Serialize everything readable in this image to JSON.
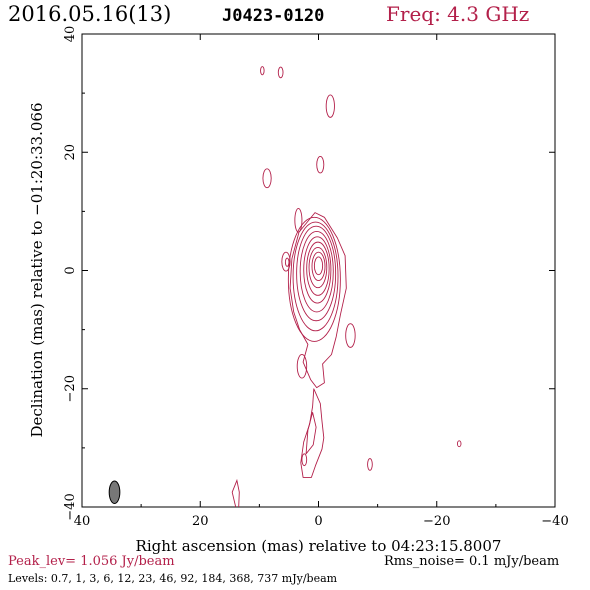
{
  "header": {
    "date": "2016.05.16(13)",
    "source": "J0423-0120",
    "frequency": "Freq: 4.3 GHz"
  },
  "footer": {
    "peak": "Peak_lev=  1.056 Jy/beam",
    "rms": "Rms_noise=  0.1 mJy/beam",
    "levels": "Levels: 0.7,   1,   3,   6,  12,  23,  46,  92, 184, 368, 737 mJy/beam"
  },
  "colors": {
    "contour": "#b3204a",
    "beam": "#777777",
    "axis": "#000000"
  },
  "chart_data": {
    "type": "contour",
    "title": "J0423-0120",
    "xlabel": "Right ascension (mas) relative to 04:23:15.8007",
    "ylabel": "Declination (mas) relative to −01:20:33.066",
    "xlim": [
      40,
      -40
    ],
    "ylim": [
      -40,
      40
    ],
    "xticks": [
      40,
      20,
      0,
      -20,
      -40
    ],
    "yticks": [
      -40,
      -20,
      0,
      20,
      40
    ],
    "xtick_labels": [
      "40",
      "20",
      "0",
      "−20",
      "−40"
    ],
    "ytick_labels": [
      "−40",
      "−20",
      "0",
      "20",
      "40"
    ],
    "levels_mJy": [
      0.7,
      1,
      3,
      6,
      12,
      23,
      46,
      92,
      184,
      368,
      737
    ],
    "peak_Jy_per_beam": 1.056,
    "rms_noise_mJy_per_beam": 0.1,
    "beam": {
      "x": 34.5,
      "y": -37.5,
      "major_mas": 3.8,
      "minor_mas": 1.8,
      "pa_deg": 0
    },
    "core": {
      "x": 0,
      "y": 0
    },
    "core_contours": [
      {
        "cx": 0.7,
        "cy": -1.5,
        "rx": 4.4,
        "ry": 10.5
      },
      {
        "cx": 0.5,
        "cy": -1.0,
        "rx": 3.8,
        "ry": 9.2
      },
      {
        "cx": 0.4,
        "cy": -0.5,
        "rx": 3.3,
        "ry": 8.0
      },
      {
        "cx": 0.3,
        "cy": -0.2,
        "rx": 2.8,
        "ry": 6.8
      },
      {
        "cx": 0.2,
        "cy": 0.1,
        "rx": 2.3,
        "ry": 5.6
      },
      {
        "cx": 0.1,
        "cy": 0.3,
        "rx": 1.9,
        "ry": 4.5
      },
      {
        "cx": 0.1,
        "cy": 0.5,
        "rx": 1.5,
        "ry": 3.4
      },
      {
        "cx": 0.0,
        "cy": 0.7,
        "rx": 1.1,
        "ry": 2.4
      },
      {
        "cx": 0.0,
        "cy": 0.8,
        "rx": 0.7,
        "ry": 1.5
      }
    ],
    "jet_outline": [
      [
        4.5,
        2
      ],
      [
        4.8,
        -3
      ],
      [
        4.2,
        -7
      ],
      [
        3.2,
        -10
      ],
      [
        1.8,
        -12.5
      ],
      [
        2.6,
        -15.5
      ],
      [
        1.3,
        -18.5
      ],
      [
        0.3,
        -19.8
      ],
      [
        -1.0,
        -19.0
      ],
      [
        -0.7,
        -15.8
      ],
      [
        -2.2,
        -14.2
      ],
      [
        -3.0,
        -11.2
      ],
      [
        -3.7,
        -7.5
      ],
      [
        -4.7,
        -3.0
      ],
      [
        -4.5,
        2.5
      ],
      [
        -3.2,
        5.5
      ],
      [
        -1.0,
        9.0
      ],
      [
        0.6,
        9.8
      ],
      [
        3.3,
        6.5
      ]
    ],
    "blobs": [
      {
        "cx": 9.5,
        "cy": 33.8,
        "rx": 0.3,
        "ry": 0.7
      },
      {
        "cx": 6.4,
        "cy": 33.5,
        "rx": 0.4,
        "ry": 0.9
      },
      {
        "cx": -2.0,
        "cy": 27.8,
        "rx": 0.7,
        "ry": 1.9
      },
      {
        "cx": -0.3,
        "cy": 17.9,
        "rx": 0.6,
        "ry": 1.4
      },
      {
        "cx": 8.7,
        "cy": 15.6,
        "rx": 0.7,
        "ry": 1.6
      },
      {
        "cx": 3.4,
        "cy": 8.5,
        "rx": 0.6,
        "ry": 2.0
      },
      {
        "cx": 5.5,
        "cy": 1.5,
        "rx": 0.7,
        "ry": 1.6
      },
      {
        "cx": 5.3,
        "cy": 1.4,
        "rx": 0.3,
        "ry": 0.7
      },
      {
        "cx": -5.4,
        "cy": -11.0,
        "rx": 0.8,
        "ry": 2.0
      },
      {
        "cx": 2.8,
        "cy": -16.2,
        "rx": 0.8,
        "ry": 2.0
      },
      {
        "cx": 2.4,
        "cy": -32.0,
        "rx": 0.4,
        "ry": 1.0
      },
      {
        "cx": -8.7,
        "cy": -32.8,
        "rx": 0.4,
        "ry": 1.0
      },
      {
        "cx": -23.8,
        "cy": -29.3,
        "rx": 0.3,
        "ry": 0.5
      }
    ],
    "tail": [
      [
        0.8,
        -20.0
      ],
      [
        -0.3,
        -22.5
      ],
      [
        -0.6,
        -25.5
      ],
      [
        -0.9,
        -28.3
      ],
      [
        -0.6,
        -30.2
      ],
      [
        0.5,
        -33.0
      ],
      [
        1.2,
        -35.0
      ],
      [
        2.6,
        -35.0
      ],
      [
        3.0,
        -32.5
      ],
      [
        2.5,
        -29.0
      ],
      [
        1.5,
        -26.0
      ],
      [
        1.0,
        -23.0
      ],
      [
        0.8,
        -20.0
      ]
    ],
    "tail_inner": [
      [
        1.0,
        -24.0
      ],
      [
        0.4,
        -26.5
      ],
      [
        0.9,
        -29.5
      ],
      [
        2.1,
        -31.0
      ],
      [
        1.8,
        -27.0
      ],
      [
        1.0,
        -24.0
      ]
    ],
    "bottom_arc": [
      [
        14.0,
        -40.0
      ],
      [
        14.6,
        -37.5
      ],
      [
        13.8,
        -35.5
      ],
      [
        13.4,
        -37.5
      ],
      [
        13.5,
        -40.0
      ]
    ]
  }
}
